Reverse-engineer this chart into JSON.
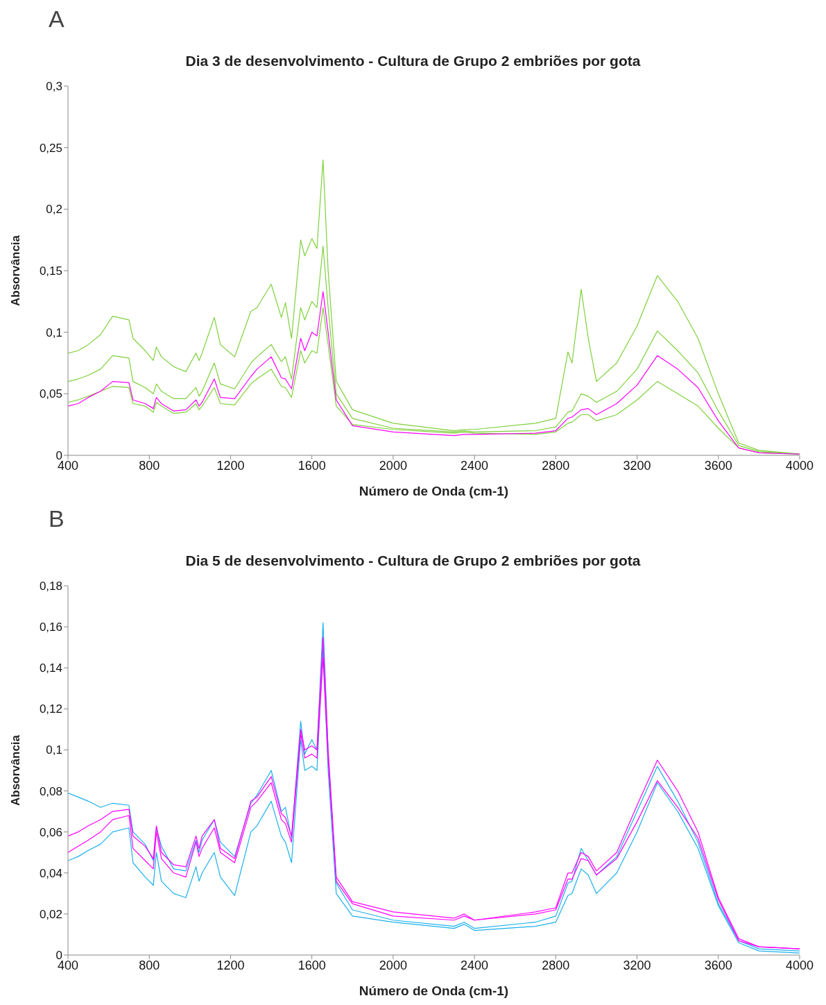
{
  "chart_data": [
    {
      "type": "line",
      "title": "Dia 3 de desenvolvimento - Cultura de Grupo 2 embriões por gota",
      "xlabel": "Número de Onda (cm-1)",
      "ylabel": "Absorvância",
      "annotations": [
        "A"
      ],
      "x": [
        400,
        450,
        500,
        560,
        620,
        700,
        720,
        780,
        820,
        835,
        860,
        920,
        980,
        1030,
        1045,
        1060,
        1120,
        1150,
        1220,
        1300,
        1330,
        1400,
        1450,
        1470,
        1500,
        1545,
        1565,
        1600,
        1625,
        1655,
        1680,
        1720,
        1800,
        2000,
        2300,
        2350,
        2400,
        2700,
        2800,
        2860,
        2880,
        2925,
        2960,
        3000,
        3100,
        3200,
        3300,
        3400,
        3500,
        3600,
        3700,
        3800,
        4000
      ],
      "xlim": [
        400,
        4000
      ],
      "xticks": [
        400,
        800,
        1200,
        1600,
        2000,
        2400,
        2800,
        3200,
        3600,
        4000
      ],
      "ylim": [
        0,
        0.3
      ],
      "yticks": [
        0,
        {
          "value": 0.05,
          "label": "0,05"
        },
        {
          "value": 0.1,
          "label": "0,1"
        },
        {
          "value": 0.15,
          "label": "0,15"
        },
        {
          "value": 0.2,
          "label": "0,2"
        },
        {
          "value": 0.25,
          "label": "0,25"
        },
        {
          "value": 0.3,
          "label": "0,3"
        }
      ],
      "grid": false,
      "marker": "none",
      "line_style": "solid",
      "series": [
        {
          "color": "#7ed03a",
          "values": [
            0.083,
            0.085,
            0.09,
            0.098,
            0.113,
            0.11,
            0.095,
            0.085,
            0.077,
            0.088,
            0.08,
            0.072,
            0.068,
            0.083,
            0.077,
            0.083,
            0.112,
            0.09,
            0.08,
            0.117,
            0.12,
            0.139,
            0.112,
            0.124,
            0.095,
            0.175,
            0.162,
            0.176,
            0.168,
            0.24,
            0.15,
            0.06,
            0.037,
            0.026,
            0.02,
            0.021,
            0.021,
            0.026,
            0.03,
            0.084,
            0.075,
            0.135,
            0.095,
            0.06,
            0.075,
            0.105,
            0.146,
            0.125,
            0.095,
            0.05,
            0.01,
            0.004,
            0.001
          ]
        },
        {
          "color": "#7ed03a",
          "values": [
            0.06,
            0.062,
            0.065,
            0.07,
            0.081,
            0.079,
            0.06,
            0.055,
            0.05,
            0.058,
            0.052,
            0.046,
            0.046,
            0.055,
            0.048,
            0.052,
            0.075,
            0.058,
            0.054,
            0.075,
            0.08,
            0.09,
            0.076,
            0.08,
            0.062,
            0.12,
            0.11,
            0.125,
            0.12,
            0.17,
            0.12,
            0.05,
            0.03,
            0.022,
            0.019,
            0.02,
            0.019,
            0.02,
            0.023,
            0.035,
            0.036,
            0.05,
            0.048,
            0.043,
            0.052,
            0.07,
            0.101,
            0.085,
            0.067,
            0.036,
            0.008,
            0.003,
            0.001
          ]
        },
        {
          "color": "#7ed03a",
          "values": [
            0.043,
            0.045,
            0.048,
            0.052,
            0.056,
            0.055,
            0.042,
            0.04,
            0.035,
            0.043,
            0.04,
            0.034,
            0.035,
            0.042,
            0.037,
            0.04,
            0.055,
            0.042,
            0.041,
            0.058,
            0.062,
            0.07,
            0.056,
            0.055,
            0.047,
            0.085,
            0.075,
            0.085,
            0.083,
            0.12,
            0.09,
            0.04,
            0.025,
            0.021,
            0.018,
            0.019,
            0.018,
            0.017,
            0.019,
            0.026,
            0.027,
            0.033,
            0.033,
            0.028,
            0.033,
            0.045,
            0.06,
            0.05,
            0.04,
            0.022,
            0.006,
            0.002,
            0.001
          ]
        },
        {
          "color": "#ff00ff",
          "values": [
            0.04,
            0.042,
            0.047,
            0.052,
            0.06,
            0.059,
            0.045,
            0.042,
            0.038,
            0.047,
            0.042,
            0.036,
            0.037,
            0.045,
            0.04,
            0.043,
            0.062,
            0.047,
            0.046,
            0.064,
            0.07,
            0.08,
            0.063,
            0.062,
            0.054,
            0.095,
            0.085,
            0.1,
            0.097,
            0.133,
            0.1,
            0.045,
            0.024,
            0.019,
            0.016,
            0.017,
            0.017,
            0.018,
            0.02,
            0.03,
            0.031,
            0.037,
            0.038,
            0.033,
            0.042,
            0.057,
            0.081,
            0.07,
            0.055,
            0.028,
            0.006,
            0.002,
            0.001
          ]
        }
      ]
    },
    {
      "type": "line",
      "title": "Dia 5 de desenvolvimento - Cultura de Grupo 2 embriões por gota",
      "xlabel": "Número de Onda (cm-1)",
      "ylabel": "Absorvância",
      "annotations": [
        "B"
      ],
      "x": [
        400,
        450,
        500,
        560,
        620,
        700,
        720,
        780,
        820,
        835,
        860,
        920,
        980,
        1030,
        1045,
        1060,
        1120,
        1150,
        1220,
        1300,
        1330,
        1400,
        1450,
        1470,
        1500,
        1545,
        1565,
        1600,
        1625,
        1655,
        1680,
        1720,
        1800,
        2000,
        2300,
        2350,
        2400,
        2700,
        2800,
        2860,
        2880,
        2925,
        2960,
        3000,
        3100,
        3200,
        3300,
        3400,
        3500,
        3600,
        3700,
        3800,
        4000
      ],
      "xlim": [
        400,
        4000
      ],
      "xticks": [
        400,
        800,
        1200,
        1600,
        2000,
        2400,
        2800,
        3200,
        3600,
        4000
      ],
      "ylim": [
        0,
        0.18
      ],
      "yticks": [
        0,
        {
          "value": 0.02,
          "label": "0,02"
        },
        {
          "value": 0.04,
          "label": "0,04"
        },
        {
          "value": 0.06,
          "label": "0,06"
        },
        {
          "value": 0.08,
          "label": "0,08"
        },
        {
          "value": 0.1,
          "label": "0,1"
        },
        {
          "value": 0.12,
          "label": "0,12"
        },
        {
          "value": 0.14,
          "label": "0,14"
        },
        {
          "value": 0.16,
          "label": "0,16"
        },
        {
          "value": 0.18,
          "label": "0,18"
        }
      ],
      "grid": false,
      "marker": "none",
      "line_style": "solid",
      "series": [
        {
          "color": "#1ab0ec",
          "values": [
            0.079,
            0.077,
            0.075,
            0.072,
            0.074,
            0.073,
            0.06,
            0.054,
            0.046,
            0.062,
            0.053,
            0.042,
            0.041,
            0.056,
            0.05,
            0.056,
            0.066,
            0.055,
            0.048,
            0.074,
            0.078,
            0.09,
            0.07,
            0.072,
            0.057,
            0.114,
            0.098,
            0.105,
            0.1,
            0.162,
            0.1,
            0.035,
            0.022,
            0.017,
            0.014,
            0.016,
            0.013,
            0.016,
            0.019,
            0.035,
            0.036,
            0.052,
            0.046,
            0.039,
            0.048,
            0.07,
            0.092,
            0.075,
            0.055,
            0.025,
            0.007,
            0.003,
            0.002
          ]
        },
        {
          "color": "#1ab0ec",
          "values": [
            0.046,
            0.048,
            0.051,
            0.054,
            0.06,
            0.062,
            0.045,
            0.038,
            0.034,
            0.05,
            0.036,
            0.03,
            0.028,
            0.043,
            0.036,
            0.04,
            0.05,
            0.038,
            0.029,
            0.06,
            0.063,
            0.075,
            0.058,
            0.055,
            0.045,
            0.105,
            0.09,
            0.092,
            0.09,
            0.15,
            0.09,
            0.03,
            0.019,
            0.016,
            0.013,
            0.015,
            0.012,
            0.014,
            0.016,
            0.029,
            0.03,
            0.042,
            0.039,
            0.03,
            0.04,
            0.06,
            0.084,
            0.07,
            0.052,
            0.024,
            0.006,
            0.002,
            0.001
          ]
        },
        {
          "color": "#ff00ff",
          "values": [
            0.058,
            0.06,
            0.063,
            0.066,
            0.07,
            0.071,
            0.058,
            0.053,
            0.047,
            0.063,
            0.05,
            0.044,
            0.043,
            0.058,
            0.052,
            0.058,
            0.066,
            0.052,
            0.047,
            0.075,
            0.077,
            0.087,
            0.069,
            0.067,
            0.058,
            0.11,
            0.1,
            0.102,
            0.1,
            0.155,
            0.1,
            0.038,
            0.026,
            0.021,
            0.018,
            0.02,
            0.017,
            0.021,
            0.023,
            0.04,
            0.04,
            0.05,
            0.048,
            0.041,
            0.05,
            0.073,
            0.095,
            0.08,
            0.06,
            0.028,
            0.008,
            0.004,
            0.003
          ]
        },
        {
          "color": "#ff00ff",
          "values": [
            0.05,
            0.053,
            0.056,
            0.06,
            0.066,
            0.068,
            0.052,
            0.046,
            0.042,
            0.06,
            0.047,
            0.04,
            0.038,
            0.055,
            0.048,
            0.052,
            0.062,
            0.05,
            0.045,
            0.072,
            0.075,
            0.084,
            0.066,
            0.064,
            0.055,
            0.108,
            0.096,
            0.098,
            0.096,
            0.145,
            0.095,
            0.036,
            0.025,
            0.019,
            0.017,
            0.019,
            0.017,
            0.02,
            0.022,
            0.037,
            0.037,
            0.047,
            0.046,
            0.039,
            0.047,
            0.065,
            0.085,
            0.072,
            0.057,
            0.027,
            0.007,
            0.004,
            0.003
          ]
        }
      ]
    }
  ]
}
